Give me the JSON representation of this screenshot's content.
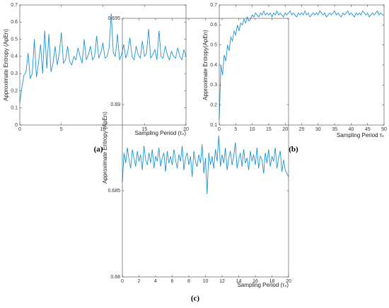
{
  "chart_data": [
    {
      "type": "line",
      "caption": "(a)",
      "xlabel": "Sampling Period (τₛ)",
      "ylabel": "Approximate Entropy (ApEn)",
      "color": "#1f93d1",
      "x": [
        0,
        0.25,
        0.5,
        0.75,
        1,
        1.25,
        1.5,
        1.75,
        2,
        2.25,
        2.5,
        2.75,
        3,
        3.25,
        3.5,
        3.75,
        4,
        4.25,
        4.5,
        4.75,
        5,
        5.25,
        5.5,
        5.75,
        6,
        6.25,
        6.5,
        6.75,
        7,
        7.25,
        7.5,
        7.75,
        8,
        8.25,
        8.5,
        8.75,
        9,
        9.25,
        9.5,
        9.75,
        10,
        10.25,
        10.5,
        10.75,
        11,
        11.25,
        11.5,
        11.75,
        12,
        12.25,
        12.5,
        12.75,
        13,
        13.25,
        13.5,
        13.75,
        14,
        14.25,
        14.5,
        14.75,
        15,
        15.25,
        15.5,
        15.75,
        16,
        16.25,
        16.5,
        16.75,
        17,
        17.25,
        17.5,
        17.75,
        18,
        18.25,
        18.5,
        18.75,
        19,
        19.25,
        19.5,
        19.75,
        20
      ],
      "values": [
        0.13,
        0.22,
        0.29,
        0.31,
        0.42,
        0.27,
        0.3,
        0.5,
        0.28,
        0.36,
        0.47,
        0.3,
        0.55,
        0.33,
        0.53,
        0.31,
        0.36,
        0.46,
        0.35,
        0.42,
        0.54,
        0.36,
        0.38,
        0.46,
        0.37,
        0.35,
        0.4,
        0.38,
        0.45,
        0.4,
        0.36,
        0.5,
        0.38,
        0.41,
        0.46,
        0.38,
        0.4,
        0.52,
        0.39,
        0.42,
        0.48,
        0.39,
        0.4,
        0.45,
        0.65,
        0.42,
        0.4,
        0.53,
        0.38,
        0.41,
        0.47,
        0.39,
        0.43,
        0.51,
        0.4,
        0.38,
        0.46,
        0.41,
        0.39,
        0.49,
        0.4,
        0.42,
        0.56,
        0.39,
        0.41,
        0.44,
        0.38,
        0.55,
        0.4,
        0.39,
        0.46,
        0.41,
        0.38,
        0.43,
        0.4,
        0.39,
        0.45,
        0.4,
        0.38,
        0.44,
        0.4
      ],
      "xlim": [
        0,
        20
      ],
      "xticks": [
        0,
        5,
        10,
        15,
        20
      ],
      "ylim": [
        0,
        0.7
      ],
      "yticks": [
        0,
        0.1,
        0.2,
        0.3,
        0.4,
        0.5,
        0.6,
        0.7
      ]
    },
    {
      "type": "line",
      "caption": "(b)",
      "xlabel": "Sampling Period τₛ",
      "ylabel": "Approximate Entropy(ApEn)",
      "color": "#1f93d1",
      "x": [
        0,
        0.5,
        1,
        1.5,
        2,
        2.5,
        3,
        3.5,
        4,
        4.5,
        5,
        5.5,
        6,
        6.5,
        7,
        7.5,
        8,
        8.5,
        9,
        9.5,
        10,
        10.5,
        11,
        11.5,
        12,
        12.5,
        13,
        13.5,
        14,
        14.5,
        15,
        15.5,
        16,
        16.5,
        17,
        17.5,
        18,
        18.5,
        19,
        19.5,
        20,
        20.5,
        21,
        21.5,
        22,
        22.5,
        23,
        23.5,
        24,
        24.5,
        25,
        25.5,
        26,
        26.5,
        27,
        27.5,
        28,
        28.5,
        29,
        29.5,
        30,
        30.5,
        31,
        31.5,
        32,
        32.5,
        33,
        33.5,
        34,
        34.5,
        35,
        35.5,
        36,
        36.5,
        37,
        37.5,
        38,
        38.5,
        39,
        39.5,
        40,
        40.5,
        41,
        41.5,
        42,
        42.5,
        43,
        43.5,
        44,
        44.5,
        45,
        45.5,
        46,
        46.5,
        47,
        47.5,
        48,
        48.5,
        49,
        49.5,
        50
      ],
      "values": [
        0.13,
        0.4,
        0.35,
        0.45,
        0.42,
        0.5,
        0.47,
        0.54,
        0.52,
        0.57,
        0.55,
        0.6,
        0.57,
        0.61,
        0.6,
        0.63,
        0.61,
        0.64,
        0.62,
        0.63,
        0.65,
        0.64,
        0.66,
        0.65,
        0.64,
        0.66,
        0.65,
        0.67,
        0.65,
        0.66,
        0.65,
        0.66,
        0.64,
        0.66,
        0.65,
        0.67,
        0.65,
        0.66,
        0.65,
        0.64,
        0.66,
        0.65,
        0.66,
        0.67,
        0.65,
        0.66,
        0.65,
        0.64,
        0.66,
        0.65,
        0.66,
        0.65,
        0.67,
        0.65,
        0.66,
        0.64,
        0.65,
        0.66,
        0.65,
        0.66,
        0.65,
        0.67,
        0.66,
        0.65,
        0.66,
        0.64,
        0.65,
        0.66,
        0.65,
        0.66,
        0.67,
        0.65,
        0.66,
        0.65,
        0.64,
        0.66,
        0.65,
        0.66,
        0.67,
        0.65,
        0.66,
        0.65,
        0.64,
        0.66,
        0.65,
        0.66,
        0.65,
        0.67,
        0.66,
        0.65,
        0.66,
        0.64,
        0.65,
        0.66,
        0.65,
        0.66,
        0.67,
        0.65,
        0.66,
        0.65,
        0.65
      ],
      "xlim": [
        0,
        50
      ],
      "xticks": [
        0,
        5,
        10,
        15,
        20,
        25,
        30,
        35,
        40,
        45,
        50
      ],
      "ylim": [
        0.1,
        0.7
      ],
      "yticks": [
        0.1,
        0.2,
        0.3,
        0.4,
        0.5,
        0.6,
        0.7
      ]
    },
    {
      "type": "line",
      "caption": "(c)",
      "xlabel": "Sampling Period (τₛ)",
      "ylabel": "Approximate Entropy (ApEn)",
      "color": "#1f93d1",
      "x": [
        0,
        0.2,
        0.4,
        0.6,
        0.8,
        1,
        1.2,
        1.4,
        1.6,
        1.8,
        2,
        2.2,
        2.4,
        2.6,
        2.8,
        3,
        3.2,
        3.4,
        3.6,
        3.8,
        4,
        4.2,
        4.4,
        4.6,
        4.8,
        5,
        5.2,
        5.4,
        5.6,
        5.8,
        6,
        6.2,
        6.4,
        6.6,
        6.8,
        7,
        7.2,
        7.4,
        7.6,
        7.8,
        8,
        8.2,
        8.4,
        8.6,
        8.8,
        9,
        9.2,
        9.4,
        9.6,
        9.8,
        10,
        10.2,
        10.4,
        10.6,
        10.8,
        11,
        11.2,
        11.4,
        11.6,
        11.8,
        12,
        12.2,
        12.4,
        12.6,
        12.8,
        13,
        13.2,
        13.4,
        13.6,
        13.8,
        14,
        14.2,
        14.4,
        14.6,
        14.8,
        15,
        15.2,
        15.4,
        15.6,
        15.8,
        16,
        16.2,
        16.4,
        16.6,
        16.8,
        17,
        17.2,
        17.4,
        17.6,
        17.8,
        18,
        18.2,
        18.4,
        18.6,
        18.8,
        19,
        19.2,
        19.4,
        19.6,
        19.8,
        20
      ],
      "values": [
        0.6855,
        0.6872,
        0.6866,
        0.6875,
        0.6868,
        0.6863,
        0.6874,
        0.6869,
        0.6864,
        0.6873,
        0.6867,
        0.6871,
        0.6862,
        0.6876,
        0.6868,
        0.6865,
        0.6872,
        0.6866,
        0.6874,
        0.6863,
        0.687,
        0.6867,
        0.6875,
        0.6864,
        0.6869,
        0.6872,
        0.6861,
        0.6873,
        0.6866,
        0.687,
        0.6865,
        0.6874,
        0.6868,
        0.6863,
        0.6871,
        0.6867,
        0.6876,
        0.6862,
        0.6869,
        0.6872,
        0.6865,
        0.687,
        0.6858,
        0.6873,
        0.6867,
        0.6864,
        0.6871,
        0.6866,
        0.6877,
        0.686,
        0.6869,
        0.6848,
        0.6872,
        0.6865,
        0.687,
        0.6863,
        0.6874,
        0.6867,
        0.6882,
        0.6864,
        0.6871,
        0.6866,
        0.6875,
        0.6862,
        0.6869,
        0.6873,
        0.6865,
        0.687,
        0.6878,
        0.6863,
        0.6868,
        0.6872,
        0.6864,
        0.6874,
        0.6866,
        0.6869,
        0.6862,
        0.6873,
        0.6867,
        0.6871,
        0.6865,
        0.6875,
        0.6863,
        0.687,
        0.6868,
        0.686,
        0.6872,
        0.6866,
        0.6874,
        0.6864,
        0.687,
        0.6867,
        0.6875,
        0.6863,
        0.6869,
        0.6873,
        0.6861,
        0.6868,
        0.6862,
        0.686,
        0.6858
      ],
      "xlim": [
        0,
        20
      ],
      "xticks": [
        0,
        2,
        4,
        6,
        8,
        10,
        12,
        14,
        16,
        18,
        20
      ],
      "ylim": [
        0.68,
        0.695
      ],
      "yticks": [
        0.68,
        0.685,
        0.69,
        0.695
      ]
    }
  ]
}
